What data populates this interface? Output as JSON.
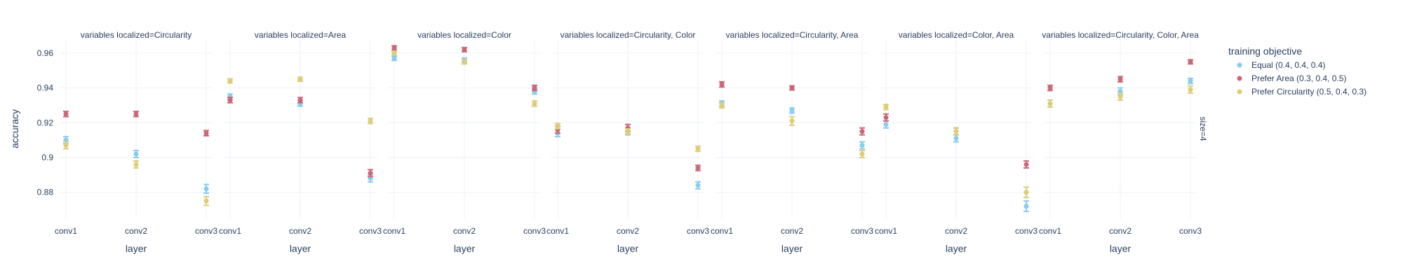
{
  "chart_data": {
    "type": "scatter",
    "error_bars": true,
    "xlabel": "layer",
    "ylabel": "accuracy",
    "categories": [
      "conv1",
      "conv2",
      "conv3"
    ],
    "ylim": [
      0.865,
      0.968
    ],
    "y_ticks": [
      0.88,
      0.9,
      0.92,
      0.94,
      0.96
    ],
    "y_tick_labels": [
      "0.88",
      "0.9",
      "0.92",
      "0.94",
      "0.96"
    ],
    "grid": true,
    "row_label": "size=4",
    "legend": {
      "title": "training objective",
      "placement": "top-right, outside plot"
    },
    "series_meta": [
      {
        "name": "Equal (0.4, 0.4, 0.4)",
        "color": "#88CCEE"
      },
      {
        "name": "Prefer Area (0.3, 0.4, 0.5)",
        "color": "#CC6677"
      },
      {
        "name": "Prefer Circularity (0.5, 0.4, 0.3)",
        "color": "#DDCC77"
      }
    ],
    "facets": [
      {
        "title": "variables localized=Circularity",
        "series": [
          {
            "name": "Equal (0.4, 0.4, 0.4)",
            "values": [
              0.91,
              0.902,
              0.882
            ],
            "errors": [
              0.002,
              0.002,
              0.0025
            ]
          },
          {
            "name": "Prefer Area (0.3, 0.4, 0.5)",
            "values": [
              0.925,
              0.925,
              0.914
            ],
            "errors": [
              0.0015,
              0.0015,
              0.0015
            ]
          },
          {
            "name": "Prefer Circularity (0.5, 0.4, 0.3)",
            "values": [
              0.907,
              0.896,
              0.875
            ],
            "errors": [
              0.002,
              0.002,
              0.0025
            ]
          }
        ]
      },
      {
        "title": "variables localized=Area",
        "series": [
          {
            "name": "Equal (0.4, 0.4, 0.4)",
            "values": [
              0.935,
              0.931,
              0.888
            ],
            "errors": [
              0.0015,
              0.0015,
              0.002
            ]
          },
          {
            "name": "Prefer Area (0.3, 0.4, 0.5)",
            "values": [
              0.933,
              0.933,
              0.891
            ],
            "errors": [
              0.0015,
              0.0015,
              0.002
            ]
          },
          {
            "name": "Prefer Circularity (0.5, 0.4, 0.3)",
            "values": [
              0.944,
              0.945,
              0.921
            ],
            "errors": [
              0.0012,
              0.0012,
              0.0015
            ]
          }
        ]
      },
      {
        "title": "variables localized=Color",
        "series": [
          {
            "name": "Equal (0.4, 0.4, 0.4)",
            "values": [
              0.957,
              0.956,
              0.938
            ],
            "errors": [
              0.0012,
              0.0012,
              0.0015
            ]
          },
          {
            "name": "Prefer Area (0.3, 0.4, 0.5)",
            "values": [
              0.963,
              0.962,
              0.94
            ],
            "errors": [
              0.0012,
              0.0012,
              0.0015
            ]
          },
          {
            "name": "Prefer Circularity (0.5, 0.4, 0.3)",
            "values": [
              0.96,
              0.955,
              0.931
            ],
            "errors": [
              0.0012,
              0.0012,
              0.0015
            ]
          }
        ]
      },
      {
        "title": "variables localized=Circularity, Color",
        "series": [
          {
            "name": "Equal (0.4, 0.4, 0.4)",
            "values": [
              0.914,
              0.915,
              0.884
            ],
            "errors": [
              0.002,
              0.002,
              0.002
            ]
          },
          {
            "name": "Prefer Area (0.3, 0.4, 0.5)",
            "values": [
              0.916,
              0.917,
              0.894
            ],
            "errors": [
              0.002,
              0.002,
              0.0015
            ]
          },
          {
            "name": "Prefer Circularity (0.5, 0.4, 0.3)",
            "values": [
              0.918,
              0.915,
              0.905
            ],
            "errors": [
              0.0015,
              0.0015,
              0.0015
            ]
          }
        ]
      },
      {
        "title": "variables localized=Circularity, Area",
        "series": [
          {
            "name": "Equal (0.4, 0.4, 0.4)",
            "values": [
              0.931,
              0.927,
              0.907
            ],
            "errors": [
              0.0015,
              0.0015,
              0.002
            ]
          },
          {
            "name": "Prefer Area (0.3, 0.4, 0.5)",
            "values": [
              0.942,
              0.94,
              0.915
            ],
            "errors": [
              0.0015,
              0.0012,
              0.002
            ]
          },
          {
            "name": "Prefer Circularity (0.5, 0.4, 0.3)",
            "values": [
              0.93,
              0.921,
              0.902
            ],
            "errors": [
              0.0015,
              0.0025,
              0.002
            ]
          }
        ]
      },
      {
        "title": "variables localized=Color, Area",
        "series": [
          {
            "name": "Equal (0.4, 0.4, 0.4)",
            "values": [
              0.919,
              0.911,
              0.872
            ],
            "errors": [
              0.002,
              0.002,
              0.003
            ]
          },
          {
            "name": "Prefer Area (0.3, 0.4, 0.5)",
            "values": [
              0.923,
              0.915,
              0.896
            ],
            "errors": [
              0.002,
              0.002,
              0.002
            ]
          },
          {
            "name": "Prefer Circularity (0.5, 0.4, 0.3)",
            "values": [
              0.929,
              0.915,
              0.88
            ],
            "errors": [
              0.0015,
              0.002,
              0.003
            ]
          }
        ]
      },
      {
        "title": "variables localized=Circularity, Color, Area",
        "series": [
          {
            "name": "Equal (0.4, 0.4, 0.4)",
            "values": [
              0.931,
              0.938,
              0.944
            ],
            "errors": [
              0.002,
              0.002,
              0.0015
            ]
          },
          {
            "name": "Prefer Area (0.3, 0.4, 0.5)",
            "values": [
              0.94,
              0.945,
              0.955
            ],
            "errors": [
              0.0015,
              0.0015,
              0.0012
            ]
          },
          {
            "name": "Prefer Circularity (0.5, 0.4, 0.3)",
            "values": [
              0.931,
              0.935,
              0.939
            ],
            "errors": [
              0.002,
              0.002,
              0.002
            ]
          }
        ]
      }
    ]
  }
}
